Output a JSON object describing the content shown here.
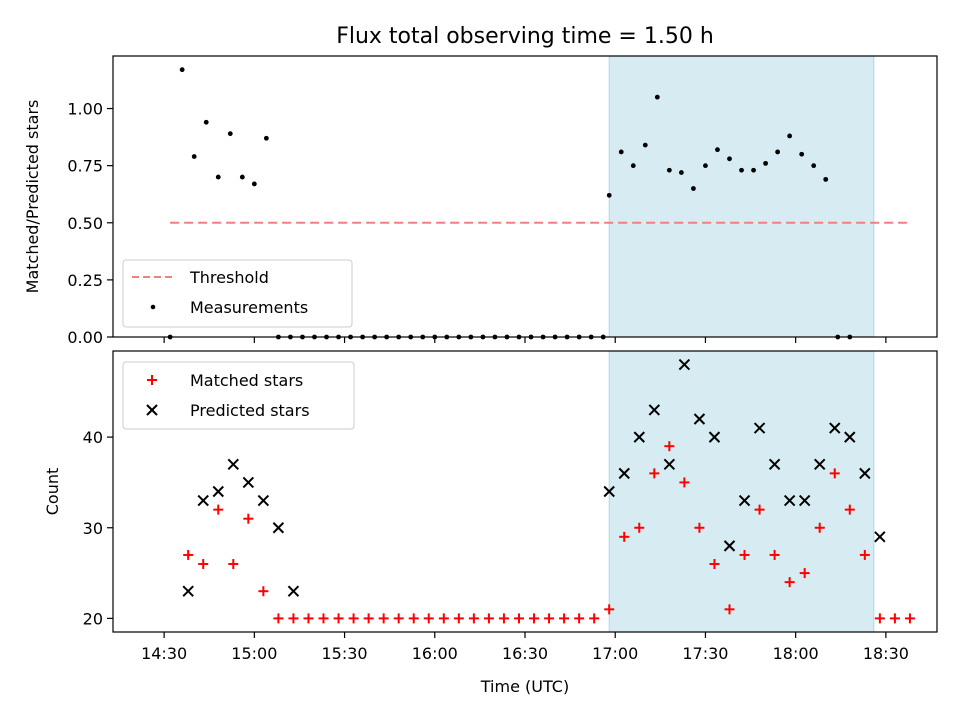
{
  "chart_data": [
    {
      "type": "scatter",
      "title": "Flux total observing time = 1.50 h",
      "ylabel": "Matched/Predicted stars",
      "xlabel": "",
      "ylim": [
        0.0,
        1.23
      ],
      "yticks": [
        "0.00",
        "0.25",
        "0.50",
        "0.75",
        "1.00"
      ],
      "highlight_span": [
        "16:58",
        "18:26"
      ],
      "highlight_color": "#add8e6",
      "threshold": {
        "name": "Threshold",
        "value": 0.5,
        "x_range": [
          "14:32",
          "18:37"
        ],
        "color": "#f08080",
        "style": "dashed"
      },
      "series": [
        {
          "name": "Measurements",
          "color": "#000000",
          "marker": "dot",
          "points": [
            [
              "14:32",
              0.0
            ],
            [
              "14:36",
              1.17
            ],
            [
              "14:40",
              0.79
            ],
            [
              "14:44",
              0.94
            ],
            [
              "14:48",
              0.7
            ],
            [
              "14:52",
              0.89
            ],
            [
              "14:56",
              0.7
            ],
            [
              "15:00",
              0.67
            ],
            [
              "15:04",
              0.87
            ],
            [
              "15:08",
              0.0
            ],
            [
              "15:12",
              0.0
            ],
            [
              "15:16",
              0.0
            ],
            [
              "15:20",
              0.0
            ],
            [
              "15:24",
              0.0
            ],
            [
              "15:28",
              0.0
            ],
            [
              "15:32",
              0.0
            ],
            [
              "15:36",
              0.0
            ],
            [
              "15:40",
              0.0
            ],
            [
              "15:44",
              0.0
            ],
            [
              "15:48",
              0.0
            ],
            [
              "15:52",
              0.0
            ],
            [
              "15:56",
              0.0
            ],
            [
              "16:00",
              0.0
            ],
            [
              "16:04",
              0.0
            ],
            [
              "16:08",
              0.0
            ],
            [
              "16:12",
              0.0
            ],
            [
              "16:16",
              0.0
            ],
            [
              "16:20",
              0.0
            ],
            [
              "16:24",
              0.0
            ],
            [
              "16:28",
              0.0
            ],
            [
              "16:32",
              0.0
            ],
            [
              "16:36",
              0.0
            ],
            [
              "16:40",
              0.0
            ],
            [
              "16:44",
              0.0
            ],
            [
              "16:48",
              0.0
            ],
            [
              "16:52",
              0.0
            ],
            [
              "16:56",
              0.0
            ],
            [
              "16:58",
              0.62
            ],
            [
              "17:02",
              0.81
            ],
            [
              "17:06",
              0.75
            ],
            [
              "17:10",
              0.84
            ],
            [
              "17:14",
              1.05
            ],
            [
              "17:18",
              0.73
            ],
            [
              "17:22",
              0.72
            ],
            [
              "17:26",
              0.65
            ],
            [
              "17:30",
              0.75
            ],
            [
              "17:34",
              0.82
            ],
            [
              "17:38",
              0.78
            ],
            [
              "17:42",
              0.73
            ],
            [
              "17:46",
              0.73
            ],
            [
              "17:50",
              0.76
            ],
            [
              "17:54",
              0.81
            ],
            [
              "17:58",
              0.88
            ],
            [
              "18:02",
              0.8
            ],
            [
              "18:06",
              0.75
            ],
            [
              "18:10",
              0.69
            ],
            [
              "18:14",
              0.0
            ],
            [
              "18:18",
              0.0
            ]
          ]
        }
      ],
      "legend": {
        "position": "lower-left",
        "entries": [
          "Threshold",
          "Measurements"
        ]
      }
    },
    {
      "type": "scatter",
      "title": "",
      "ylabel": "Count",
      "xlabel": "Time (UTC)",
      "ylim": [
        18.5,
        49.5
      ],
      "yticks": [
        "20",
        "30",
        "40"
      ],
      "xticks": [
        "14:30",
        "15:00",
        "15:30",
        "16:00",
        "16:30",
        "17:00",
        "17:30",
        "18:00",
        "18:30"
      ],
      "highlight_span": [
        "16:58",
        "18:26"
      ],
      "highlight_color": "#add8e6",
      "series": [
        {
          "name": "Matched stars",
          "color": "#ff0000",
          "marker": "plus",
          "points": [
            [
              "14:38",
              27
            ],
            [
              "14:43",
              26
            ],
            [
              "14:48",
              32
            ],
            [
              "14:53",
              26
            ],
            [
              "14:58",
              31
            ],
            [
              "15:03",
              23
            ],
            [
              "15:08",
              20
            ],
            [
              "15:13",
              20
            ],
            [
              "15:18",
              20
            ],
            [
              "15:23",
              20
            ],
            [
              "15:28",
              20
            ],
            [
              "15:33",
              20
            ],
            [
              "15:38",
              20
            ],
            [
              "15:43",
              20
            ],
            [
              "15:48",
              20
            ],
            [
              "15:53",
              20
            ],
            [
              "15:58",
              20
            ],
            [
              "16:03",
              20
            ],
            [
              "16:08",
              20
            ],
            [
              "16:13",
              20
            ],
            [
              "16:18",
              20
            ],
            [
              "16:23",
              20
            ],
            [
              "16:28",
              20
            ],
            [
              "16:33",
              20
            ],
            [
              "16:38",
              20
            ],
            [
              "16:43",
              20
            ],
            [
              "16:48",
              20
            ],
            [
              "16:53",
              20
            ],
            [
              "16:58",
              21
            ],
            [
              "17:03",
              29
            ],
            [
              "17:08",
              30
            ],
            [
              "17:13",
              36
            ],
            [
              "17:18",
              39
            ],
            [
              "17:23",
              35
            ],
            [
              "17:28",
              30
            ],
            [
              "17:33",
              26
            ],
            [
              "17:38",
              21
            ],
            [
              "17:43",
              27
            ],
            [
              "17:48",
              32
            ],
            [
              "17:53",
              27
            ],
            [
              "17:58",
              24
            ],
            [
              "18:03",
              25
            ],
            [
              "18:08",
              30
            ],
            [
              "18:13",
              36
            ],
            [
              "18:18",
              32
            ],
            [
              "18:23",
              27
            ],
            [
              "18:28",
              20
            ],
            [
              "18:33",
              20
            ],
            [
              "18:38",
              20
            ]
          ]
        },
        {
          "name": "Predicted stars",
          "color": "#000000",
          "marker": "x",
          "points": [
            [
              "14:38",
              23
            ],
            [
              "14:43",
              33
            ],
            [
              "14:48",
              34
            ],
            [
              "14:53",
              37
            ],
            [
              "14:58",
              35
            ],
            [
              "15:03",
              33
            ],
            [
              "15:08",
              30
            ],
            [
              "15:13",
              23
            ],
            [
              "16:58",
              34
            ],
            [
              "17:03",
              36
            ],
            [
              "17:08",
              40
            ],
            [
              "17:13",
              43
            ],
            [
              "17:18",
              37
            ],
            [
              "17:23",
              48
            ],
            [
              "17:28",
              42
            ],
            [
              "17:33",
              40
            ],
            [
              "17:38",
              28
            ],
            [
              "17:43",
              33
            ],
            [
              "17:48",
              41
            ],
            [
              "17:53",
              37
            ],
            [
              "17:58",
              33
            ],
            [
              "18:03",
              33
            ],
            [
              "18:08",
              37
            ],
            [
              "18:13",
              41
            ],
            [
              "18:18",
              40
            ],
            [
              "18:23",
              36
            ],
            [
              "18:28",
              29
            ]
          ]
        }
      ],
      "legend": {
        "position": "upper-left",
        "entries": [
          "Matched stars",
          "Predicted stars"
        ]
      }
    }
  ]
}
